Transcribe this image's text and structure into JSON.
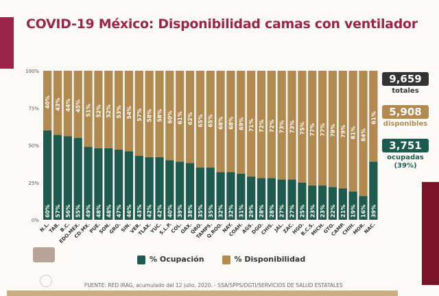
{
  "title": "COVID-19 México: Disponibilidad camas con ventilador",
  "colors": {
    "ocupacion": "#1e5b4f",
    "disponibilidad": "#b28a4f",
    "accent": "#9d2449",
    "totales": "#333333"
  },
  "stats": {
    "totales": {
      "value": "9,659",
      "label": "totales"
    },
    "disponibles": {
      "value": "5,908",
      "label": "disponibles"
    },
    "ocupadas": {
      "value": "3,751",
      "label": "ocupadas",
      "pct": "(39%)"
    }
  },
  "legend": {
    "ocupacion": "% Ocupación",
    "disponibilidad": "% Disponibilidad"
  },
  "source": "FUENTE: RED IRAG, acumulado del 12 julio, 2020. - SSA/SPPS/DGTI/SERVICIOS DE SALUD ESTATALES",
  "chart_data": {
    "type": "bar",
    "stacked": true,
    "categories": [
      "N.L.",
      "TAB.",
      "B.C.",
      "EDO.MEX.",
      "CD.MX.",
      "PUE.",
      "SON.",
      "GRO.",
      "SIN.",
      "VER.",
      "TLAX.",
      "YUC.",
      "S.L.P.",
      "COL.",
      "OAX.",
      "QRO.",
      "TAMPS.",
      "Q.ROO.",
      "NAY.",
      "COAH.",
      "AGS.",
      "DGO.",
      "CHIS.",
      "JAL.",
      "ZAC.",
      "HGO.",
      "B.C.S.",
      "MICH.",
      "GTO.",
      "CAMP.",
      "CHIH.",
      "MOR.",
      "NAC."
    ],
    "series": [
      {
        "name": "% Ocupación",
        "values": [
          60,
          57,
          56,
          55,
          49,
          48,
          48,
          47,
          46,
          43,
          42,
          42,
          40,
          39,
          38,
          35,
          35,
          32,
          32,
          31,
          29,
          28,
          28,
          27,
          27,
          25,
          23,
          23,
          22,
          21,
          19,
          16,
          39
        ]
      },
      {
        "name": "% Disponibilidad",
        "values": [
          40,
          43,
          44,
          45,
          51,
          52,
          52,
          53,
          54,
          57,
          58,
          58,
          60,
          61,
          62,
          65,
          65,
          68,
          68,
          69,
          71,
          72,
          72,
          73,
          73,
          75,
          77,
          77,
          78,
          79,
          81,
          84,
          61
        ]
      }
    ],
    "yticks": [
      "0%",
      "25%",
      "50%",
      "75%",
      "100%"
    ],
    "ylim": [
      0,
      100
    ],
    "legend": "bottom"
  }
}
